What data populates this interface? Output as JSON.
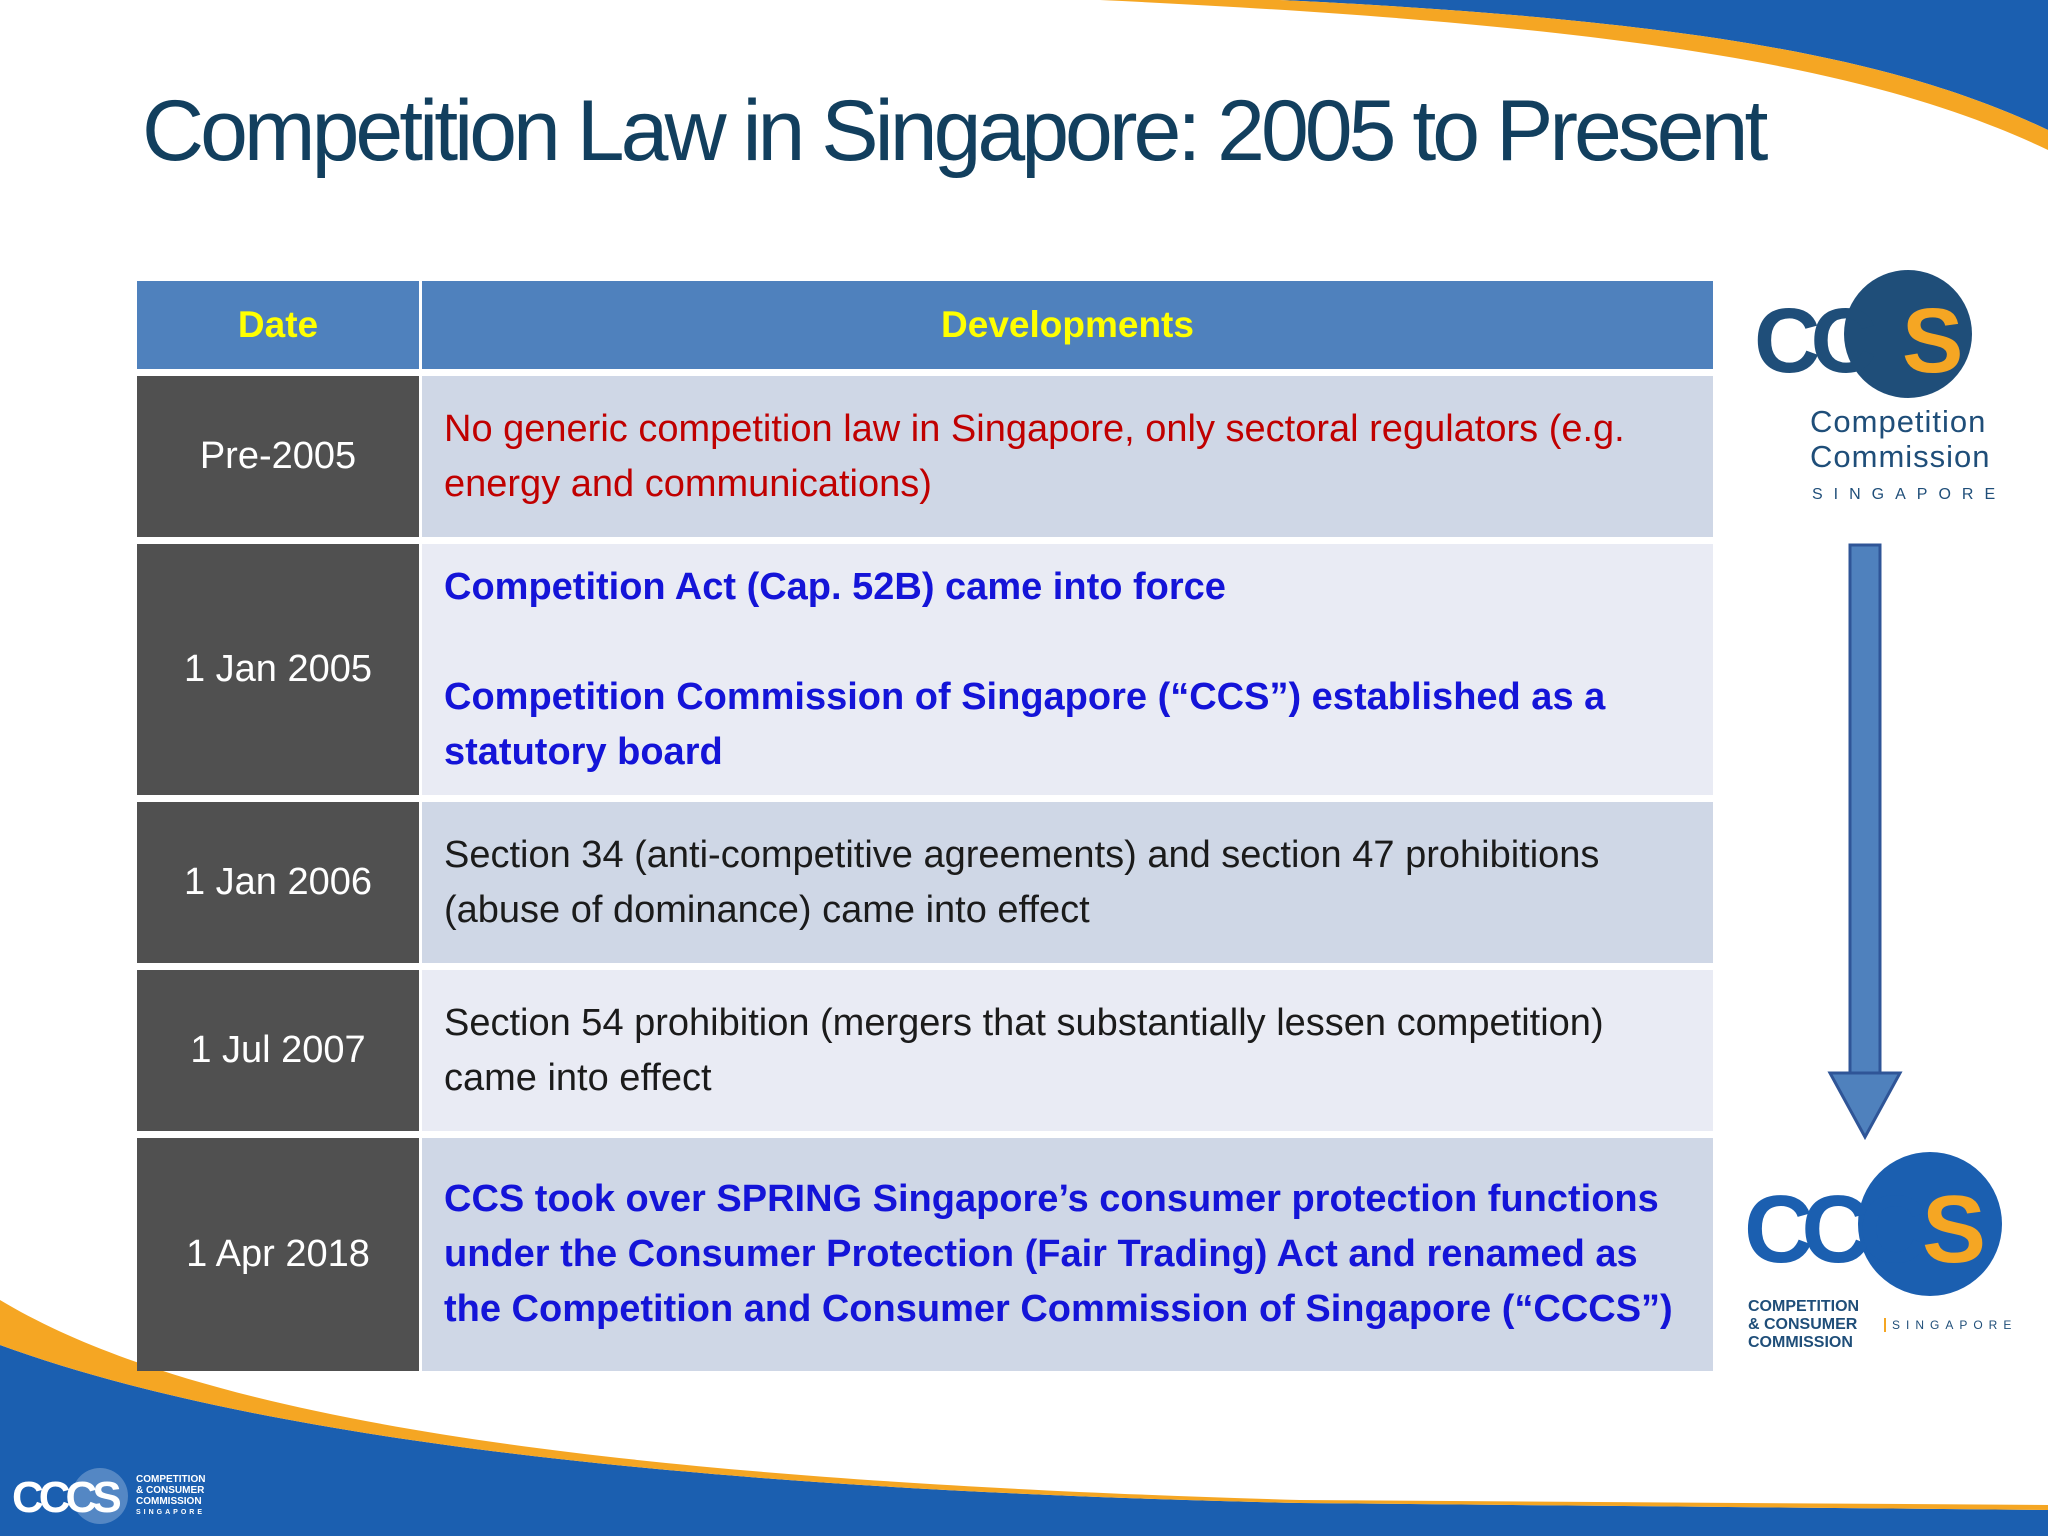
{
  "slide": {
    "title": "Competition Law in Singapore: 2005 to Present"
  },
  "table": {
    "headers": {
      "date": "Date",
      "developments": "Developments"
    },
    "rows": [
      {
        "date": "Pre-2005",
        "lines": [
          "No generic competition law in Singapore, only sectoral regulators (e.g. energy and communications)"
        ]
      },
      {
        "date": "1 Jan 2005",
        "lines": [
          "Competition Act (Cap. 52B) came into force",
          "Competition Commission of Singapore (“CCS”) established as a statutory board"
        ]
      },
      {
        "date": "1 Jan 2006",
        "lines": [
          "Section 34 (anti-competitive agreements) and section 47 prohibitions (abuse of dominance) came into effect"
        ]
      },
      {
        "date": "1 Jul 2007",
        "lines": [
          "Section 54 prohibition (mergers that substantially lessen competition) came into effect"
        ]
      },
      {
        "date": "1 Apr 2018",
        "lines": [
          "CCS took over SPRING Singapore’s consumer protection functions under the Consumer Protection (Fair Trading) Act and renamed as the Competition and Consumer Commission of Singapore (“CCCS”)"
        ]
      }
    ]
  },
  "logos": {
    "ccs": {
      "letters_dark": "CC",
      "letter_accent": "S",
      "line1": "Competition",
      "line2": "Commission",
      "country": "SINGAPORE"
    },
    "cccs": {
      "letters_dark": "CCC",
      "letter_accent": "S",
      "sub1": "COMPETITION",
      "sub2": "& CONSUMER",
      "sub3": "COMMISSION",
      "country": "SINGAPORE"
    },
    "footer": {
      "letters": "CCCS",
      "sub1": "COMPETITION",
      "sub2": "& CONSUMER",
      "sub3": "COMMISSION",
      "country": "SINGAPORE"
    }
  },
  "colors": {
    "title": "#123f5e",
    "header_bg": "#4f81bd",
    "header_text": "#ffff00",
    "date_bg": "#505050",
    "row_odd": "#cfd7e6",
    "row_even": "#e9ebf4",
    "text_red": "#c00000",
    "text_blue": "#1414d8",
    "brand_blue": "#1b5fb0",
    "brand_orange": "#f5a623"
  }
}
